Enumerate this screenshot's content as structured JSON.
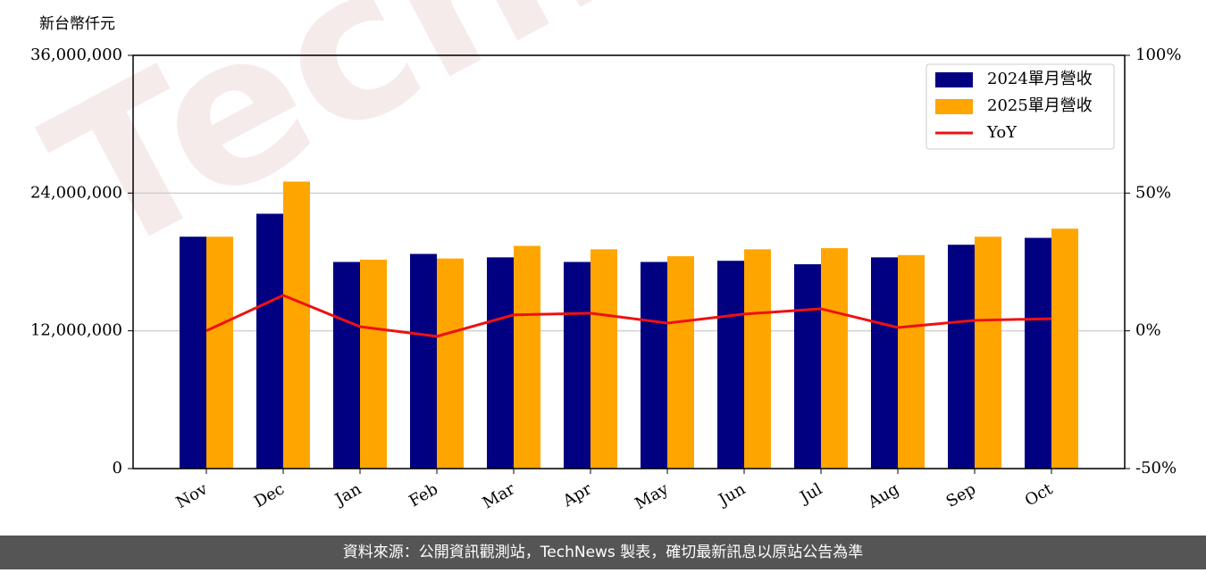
{
  "chart_data": {
    "type": "bar_line",
    "y_label": "新台幣仟元",
    "watermark": "TechNews",
    "source": "資料來源：公開資訊觀測站，TechNews 製表，確切最新訊息以原站公告為準",
    "categories": [
      "Nov",
      "Dec",
      "Jan",
      "Feb",
      "Mar",
      "Apr",
      "May",
      "Jun",
      "Jul",
      "Aug",
      "Sep",
      "Oct"
    ],
    "series": [
      {
        "name": "2024單月營收",
        "type": "bar",
        "color": "#000080",
        "values": [
          20200000,
          22200000,
          18000000,
          18700000,
          18400000,
          18000000,
          18000000,
          18100000,
          17800000,
          18400000,
          19500000,
          20100000
        ]
      },
      {
        "name": "2025單月營收",
        "type": "bar",
        "color": "#ffa500",
        "values": [
          20200000,
          25000000,
          18200000,
          18300000,
          19400000,
          19100000,
          18500000,
          19100000,
          19200000,
          18600000,
          20200000,
          20900000
        ]
      },
      {
        "name": "YoY",
        "type": "line",
        "axis": "y2",
        "color": "#ee1111",
        "values": [
          0,
          12.9,
          1.5,
          -2.0,
          5.8,
          6.4,
          2.8,
          6.1,
          8.0,
          1.2,
          3.8,
          4.4
        ]
      }
    ],
    "ylim": [
      0,
      36000000
    ],
    "yticks": [
      0,
      {
        "value": 12000000,
        "label": "12,000,000"
      },
      {
        "value": 24000000,
        "label": "24,000,000"
      },
      {
        "value": 36000000,
        "label": "36,000,000"
      }
    ],
    "y2lim": [
      -50,
      100
    ],
    "y2ticks": [
      {
        "value": -50,
        "label": "-50%"
      },
      {
        "value": 0,
        "label": "0%"
      },
      {
        "value": 50,
        "label": "50%"
      },
      {
        "value": 100,
        "label": "100%"
      }
    ],
    "grid": true,
    "legend": "upper right"
  }
}
